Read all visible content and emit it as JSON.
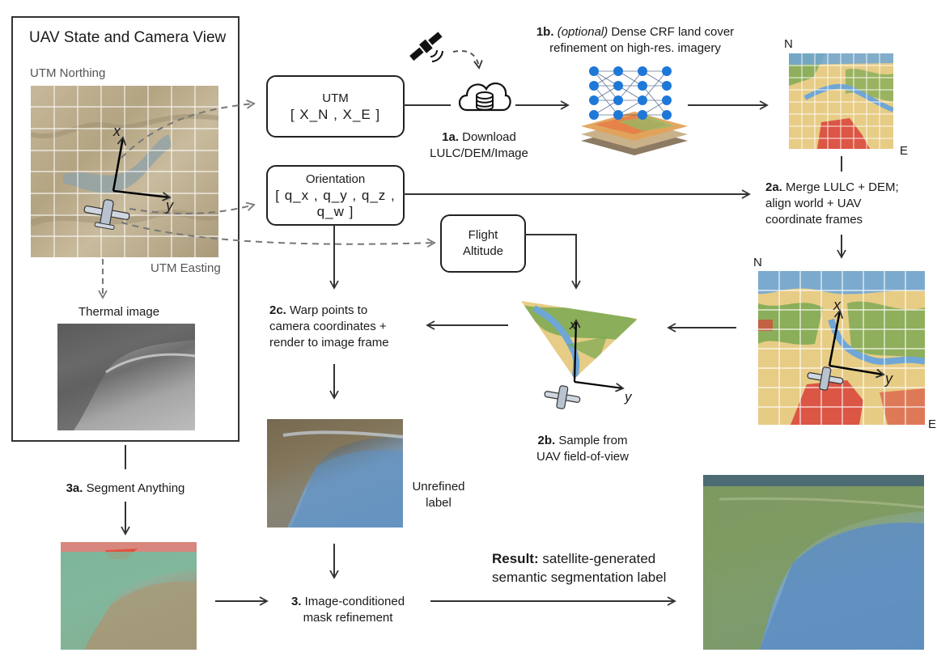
{
  "uav_panel": {
    "title": "UAV State and Camera View",
    "utm_northing": "UTM Northing",
    "utm_easting": "UTM Easting",
    "axis_x": "x",
    "axis_y": "y",
    "thermal_label": "Thermal image"
  },
  "boxes": {
    "utm_title": "UTM",
    "utm_vector": "[ X_N , X_E ]",
    "orientation_title": "Orientation",
    "orientation_vector": "[ q_x , q_y , q_z , q_w ]",
    "flight_line1": "Flight",
    "flight_line2": "Altitude"
  },
  "steps": {
    "s1a_bold": "1a.",
    "s1a_line1": "Download",
    "s1a_line2": "LULC/DEM/Image",
    "s1b_bold": "1b.",
    "s1b_italic": "(optional)",
    "s1b_line1": "Dense CRF land cover",
    "s1b_line2": "refinement on high-res. imagery",
    "s2a_bold": "2a.",
    "s2a_line1": "Merge LULC + DEM;",
    "s2a_line2": "align world + UAV",
    "s2a_line3": "coordinate frames",
    "s2b_bold": "2b.",
    "s2b_line1": "Sample from",
    "s2b_line2": "UAV field-of-view",
    "s2c_bold": "2c.",
    "s2c_line1": "Warp points to",
    "s2c_line2": "camera coordinates +",
    "s2c_line3": "render to image frame",
    "s3a_bold": "3a.",
    "s3a_text": "Segment Anything",
    "s3_bold": "3.",
    "s3_line1": "Image-conditioned",
    "s3_line2": "mask refinement",
    "unrefined_line1": "Unrefined",
    "unrefined_line2": "label",
    "result_bold": "Result:",
    "result_line1": "satellite-generated",
    "result_line2": "semantic segmentation label"
  },
  "map_labels": {
    "north1": "N",
    "east1": "E",
    "north2": "N",
    "east2": "E",
    "axis_x": "x",
    "axis_y": "y",
    "fov_x": "x",
    "fov_y": "y"
  },
  "colors": {
    "water": "#6fa6d6",
    "forest": "#6a9a4a",
    "crop": "#e5c27a",
    "urban": "#d9413a",
    "terrain": "#b8ab8a",
    "node": "#1e78d8"
  }
}
